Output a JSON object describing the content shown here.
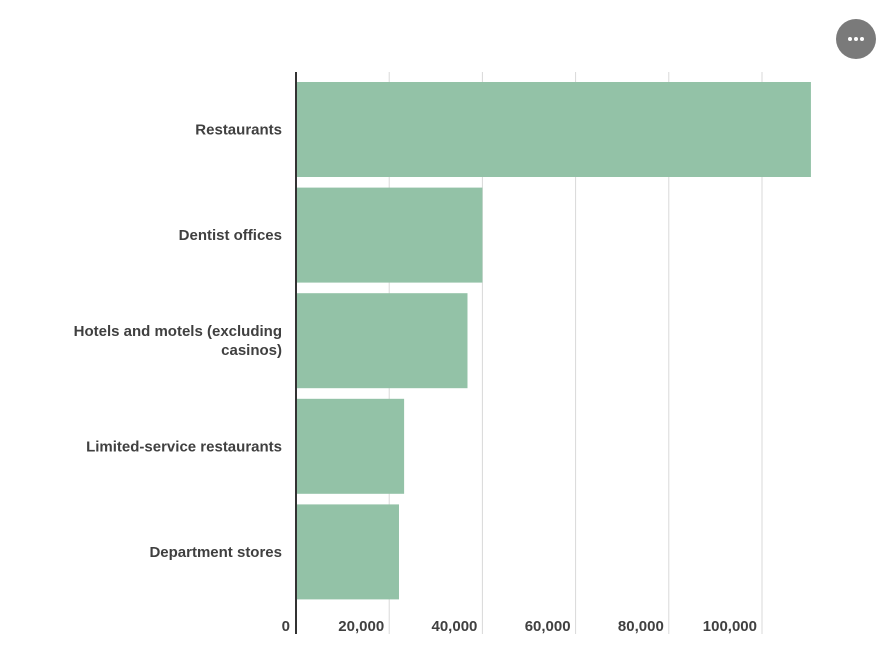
{
  "menu": {
    "icon": "more-horizontal-icon"
  },
  "colors": {
    "bar": "#93c2a7",
    "axis": "#333333",
    "grid": "#d9d9d9",
    "text": "#404040"
  },
  "chart_data": {
    "type": "bar",
    "orientation": "horizontal",
    "title": "",
    "xlabel": "",
    "ylabel": "",
    "categories": [
      "Restaurants",
      "Dentist offices",
      "Hotels and motels (excluding casinos)",
      "Limited-service restaurants",
      "Department stores"
    ],
    "category_lines": [
      [
        "Restaurants"
      ],
      [
        "Dentist offices"
      ],
      [
        "Hotels and motels (excluding",
        "casinos)"
      ],
      [
        "Limited-service restaurants"
      ],
      [
        "Department stores"
      ]
    ],
    "values": [
      110500,
      40000,
      36800,
      23200,
      22100
    ],
    "xlim": [
      0,
      120000
    ],
    "x_ticks": [
      0,
      20000,
      40000,
      60000,
      80000,
      100000
    ],
    "x_tick_labels": [
      "0",
      "20,000",
      "40,000",
      "60,000",
      "80,000",
      "100,000"
    ],
    "grid": true
  }
}
